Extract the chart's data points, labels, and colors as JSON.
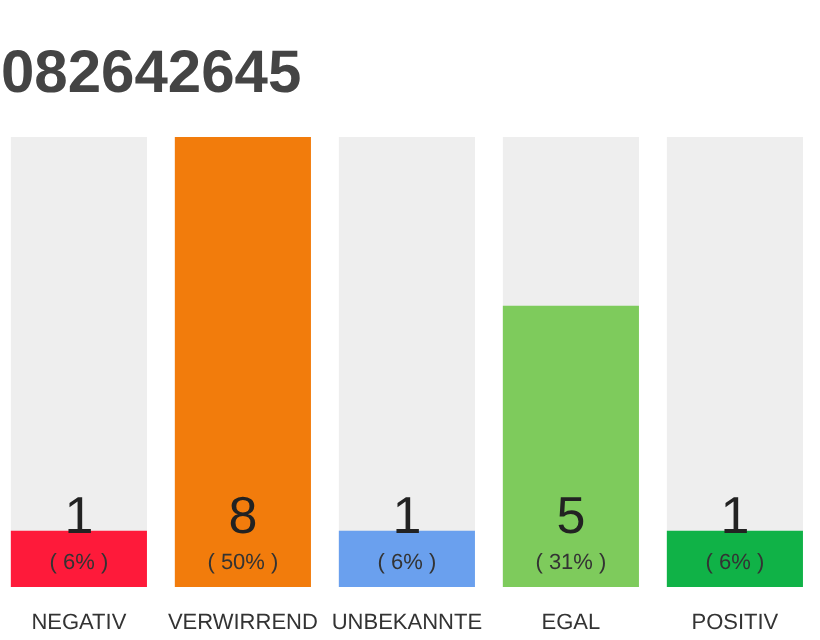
{
  "chart_data": {
    "type": "bar",
    "title": "082642645",
    "categories": [
      "NEGATIV",
      "VERWIRREND",
      "UNBEKANNTE",
      "EGAL",
      "POSITIV"
    ],
    "values": [
      1,
      8,
      1,
      5,
      1
    ],
    "data_labels": true,
    "colors": [
      "#fe1a3a",
      "#f27c0c",
      "#6aa0ee",
      "#7ecb5c",
      "#10b247"
    ],
    "annotations": [
      {
        "text": "( 6% )",
        "x": "NEGATIV",
        "y": 0
      },
      {
        "text": "( 50% )",
        "x": "VERWIRREND",
        "y": 0
      },
      {
        "text": "( 6% )",
        "x": "UNBEKANNTE",
        "y": 0
      },
      {
        "text": "( 31% )",
        "x": "EGAL",
        "y": 0
      },
      {
        "text": "( 6% )",
        "x": "POSITIV",
        "y": 0
      }
    ]
  }
}
